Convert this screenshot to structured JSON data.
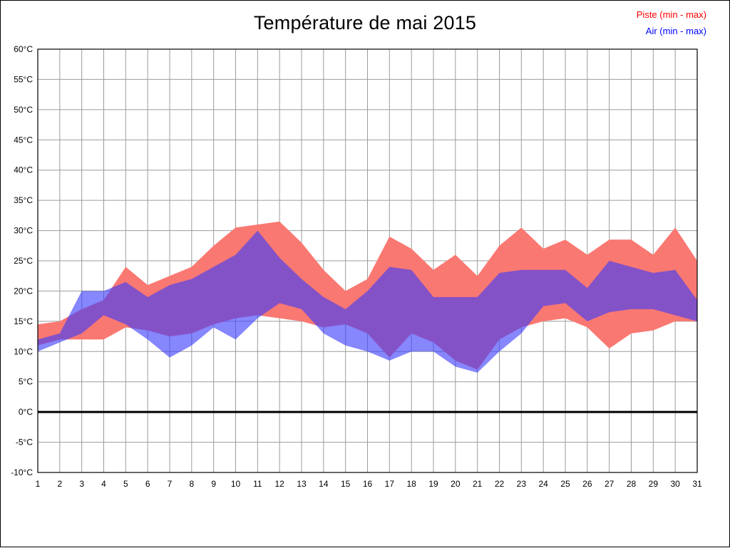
{
  "chart_data": {
    "type": "area",
    "title": "Température de mai 2015",
    "xlabel": "",
    "ylabel": "",
    "x": [
      1,
      2,
      3,
      4,
      5,
      6,
      7,
      8,
      9,
      10,
      11,
      12,
      13,
      14,
      15,
      16,
      17,
      18,
      19,
      20,
      21,
      22,
      23,
      24,
      25,
      26,
      27,
      28,
      29,
      30,
      31
    ],
    "ylim": [
      -10,
      60
    ],
    "ytick_step": 5,
    "ytick_suffix": "°C",
    "grid": true,
    "grid_color": "#9b9b9b",
    "zero_line_value": 0,
    "zero_line_color": "#000000",
    "legend_position": "top-right",
    "series": [
      {
        "key": "piste",
        "name": "Piste (min - max)",
        "color": "#ff0000",
        "fill": "rgb(250,120,114)",
        "min": [
          11,
          12,
          12,
          12,
          14,
          13.5,
          12.5,
          13,
          14.5,
          15.5,
          16,
          15.5,
          15,
          14,
          14.5,
          13,
          9,
          13,
          11.5,
          8.5,
          7,
          12,
          14,
          15,
          15.5,
          14,
          10.5,
          13,
          13.5,
          15,
          15
        ],
        "max": [
          14.5,
          15,
          17,
          18.5,
          24,
          21,
          22.5,
          24,
          27.5,
          30.5,
          31,
          31.5,
          28,
          23.5,
          20,
          22,
          29,
          27,
          23.5,
          26,
          22.5,
          27.5,
          30.5,
          27,
          28.5,
          26,
          28.5,
          28.5,
          26,
          30.5,
          25
        ]
      },
      {
        "key": "air",
        "name": "Air (min - max)",
        "color": "#0000ff",
        "fill": "rgba(60,60,252,0.62)",
        "min": [
          10,
          11.5,
          13,
          16,
          14.5,
          12,
          9,
          11,
          14,
          12,
          15.5,
          18,
          17,
          13,
          11,
          10,
          8.5,
          10,
          10,
          7.5,
          6.5,
          10,
          13,
          17.5,
          18,
          15,
          16.5,
          17,
          17,
          16,
          15
        ],
        "max": [
          12,
          13,
          20,
          20,
          21.5,
          19,
          21,
          22,
          24,
          26,
          30,
          25.5,
          22,
          19,
          17,
          20,
          24,
          23.5,
          19,
          19,
          19,
          23,
          23.5,
          23.5,
          23.5,
          20.5,
          25,
          24,
          23,
          23.5,
          18.5
        ]
      }
    ]
  }
}
